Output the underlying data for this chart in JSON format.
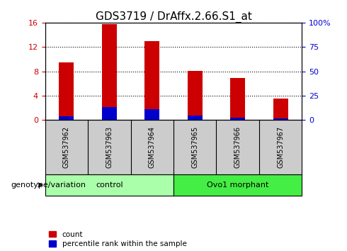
{
  "title": "GDS3719 / DrAffx.2.66.S1_at",
  "samples": [
    "GSM537962",
    "GSM537963",
    "GSM537964",
    "GSM537965",
    "GSM537966",
    "GSM537967"
  ],
  "count_values": [
    9.5,
    15.7,
    13.0,
    8.1,
    6.9,
    3.5
  ],
  "percentile_values": [
    4.0,
    13.0,
    11.0,
    4.5,
    2.5,
    1.5
  ],
  "count_color": "#cc0000",
  "percentile_color": "#0000cc",
  "left_ylim": [
    0,
    16
  ],
  "right_ylim": [
    0,
    100
  ],
  "left_yticks": [
    0,
    4,
    8,
    12,
    16
  ],
  "right_yticks": [
    0,
    25,
    50,
    75,
    100
  ],
  "right_yticklabels": [
    "0",
    "25",
    "50",
    "75",
    "100%"
  ],
  "groups": [
    {
      "label": "control",
      "indices": [
        0,
        1,
        2
      ],
      "color": "#aaffaa"
    },
    {
      "label": "Ovo1 morphant",
      "indices": [
        3,
        4,
        5
      ],
      "color": "#44ee44"
    }
  ],
  "group_label": "genotype/variation",
  "legend_count_label": "count",
  "legend_percentile_label": "percentile rank within the sample",
  "bar_width": 0.35,
  "background_color": "#ffffff",
  "tick_label_bg": "#cccccc",
  "title_fontsize": 11,
  "tick_fontsize": 8,
  "label_fontsize": 8
}
